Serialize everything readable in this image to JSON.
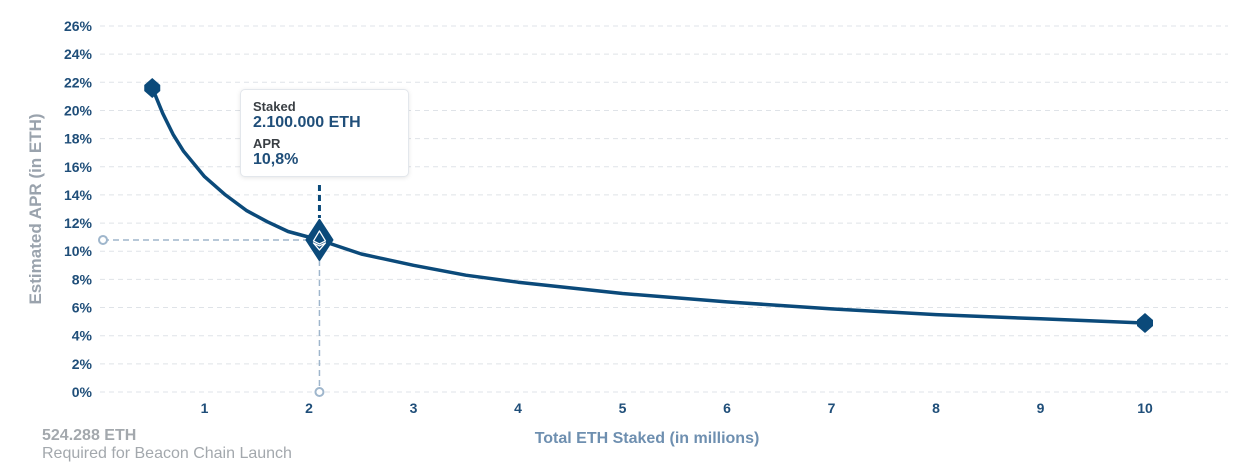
{
  "chart_data": {
    "type": "line",
    "xlabel": "Total ETH Staked  (in millions)",
    "ylabel": "Estimated APR (in ETH)",
    "xlim": [
      0,
      10.8
    ],
    "ylim": [
      0,
      26
    ],
    "x_ticks": [
      1,
      2,
      3,
      4,
      5,
      6,
      7,
      8,
      9,
      10
    ],
    "y_ticks": [
      "0%",
      "2%",
      "4%",
      "6%",
      "8%",
      "10%",
      "12%",
      "14%",
      "16%",
      "18%",
      "20%",
      "22%",
      "24%",
      "26%"
    ],
    "y_tick_values": [
      0,
      2,
      4,
      6,
      8,
      10,
      12,
      14,
      16,
      18,
      20,
      22,
      24,
      26
    ],
    "grid": true,
    "series": [
      {
        "x": [
          0.5,
          0.6,
          0.7,
          0.8,
          1.0,
          1.2,
          1.4,
          1.6,
          1.8,
          2.1,
          2.5,
          3.0,
          3.5,
          4.0,
          5.0,
          6.0,
          7.0,
          8.0,
          9.0,
          10.0
        ],
        "y": [
          21.6,
          19.8,
          18.3,
          17.1,
          15.3,
          14.0,
          12.9,
          12.1,
          11.4,
          10.8,
          9.8,
          9.0,
          8.3,
          7.8,
          7.0,
          6.4,
          5.9,
          5.5,
          5.2,
          4.9
        ]
      }
    ],
    "endpoints": [
      {
        "x": 0.5,
        "y": 21.6
      },
      {
        "x": 10.0,
        "y": 4.9
      }
    ],
    "highlight": {
      "x": 2.1,
      "y": 10.8
    },
    "colors": {
      "line": "#0b4a7a",
      "grid": "#dfe3e8",
      "guide": "#9fb6cc"
    }
  },
  "tooltip": {
    "staked_label": "Staked",
    "staked_value": "2.100.000 ETH",
    "apr_label": "APR",
    "apr_value": "10,8%"
  },
  "note": {
    "value": "524.288 ETH",
    "text": "Required for Beacon Chain Launch"
  }
}
